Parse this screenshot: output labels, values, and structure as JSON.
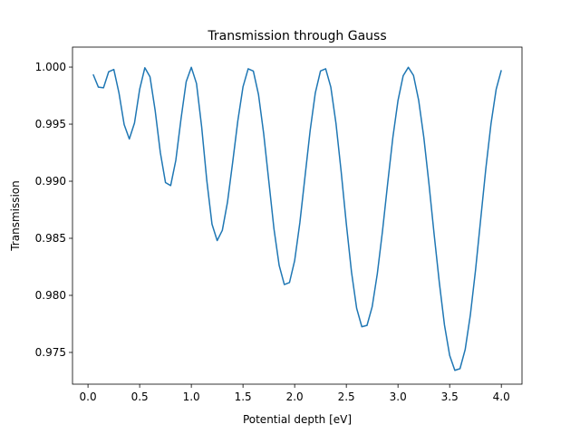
{
  "chart_data": {
    "type": "line",
    "title": "Transmission through Gauss",
    "x_label": "Potential depth [eV]",
    "y_label": "Transmission",
    "x": [
      0.05,
      0.1,
      0.15,
      0.2,
      0.25,
      0.3,
      0.35,
      0.4,
      0.45,
      0.5,
      0.55,
      0.6,
      0.65,
      0.7,
      0.75,
      0.8,
      0.85,
      0.9,
      0.95,
      1.0,
      1.05,
      1.1,
      1.15,
      1.2,
      1.25,
      1.3,
      1.35,
      1.4,
      1.45,
      1.5,
      1.55,
      1.6,
      1.65,
      1.7,
      1.75,
      1.8,
      1.85,
      1.9,
      1.95,
      2.0,
      2.05,
      2.1,
      2.15,
      2.2,
      2.25,
      2.3,
      2.35,
      2.4,
      2.45,
      2.5,
      2.55,
      2.6,
      2.65,
      2.7,
      2.75,
      2.8,
      2.85,
      2.9,
      2.95,
      3.0,
      3.05,
      3.1,
      3.15,
      3.2,
      3.25,
      3.3,
      3.35,
      3.4,
      3.45,
      3.5,
      3.55,
      3.6,
      3.65,
      3.7,
      3.75,
      3.8,
      3.85,
      3.9,
      3.95,
      4.0
    ],
    "series": [
      {
        "name": "Transmission",
        "color": "#1f77b4",
        "values": [
          0.99936,
          0.99825,
          0.99819,
          0.99959,
          0.99979,
          0.99772,
          0.99496,
          0.9937,
          0.9951,
          0.99805,
          0.99994,
          0.99915,
          0.99619,
          0.99251,
          0.98988,
          0.98962,
          0.99184,
          0.99545,
          0.99871,
          0.99998,
          0.99856,
          0.99476,
          0.99004,
          0.98624,
          0.9848,
          0.9857,
          0.98817,
          0.99166,
          0.9953,
          0.99827,
          0.99985,
          0.99965,
          0.9976,
          0.99418,
          0.99,
          0.98581,
          0.98262,
          0.98095,
          0.98113,
          0.98305,
          0.98635,
          0.9904,
          0.99445,
          0.99775,
          0.99966,
          0.99985,
          0.99824,
          0.99505,
          0.99084,
          0.98626,
          0.98205,
          0.97886,
          0.97725,
          0.97737,
          0.979,
          0.98191,
          0.98564,
          0.98981,
          0.99382,
          0.99707,
          0.99924,
          0.99998,
          0.99927,
          0.99709,
          0.99383,
          0.98975,
          0.98532,
          0.98112,
          0.97739,
          0.97474,
          0.97343,
          0.97358,
          0.97525,
          0.97827,
          0.98219,
          0.98665,
          0.99111,
          0.99503,
          0.99805,
          0.99973
        ]
      }
    ],
    "xlim": [
      -0.15,
      4.2
    ],
    "xticks": [
      {
        "value": 0,
        "label": "0.0"
      },
      0.5,
      {
        "value": 1,
        "label": "1.0"
      },
      1.5,
      {
        "value": 2,
        "label": "2.0"
      },
      2.5,
      {
        "value": 3,
        "label": "3.0"
      },
      3.5,
      {
        "value": 4,
        "label": "4.0"
      }
    ],
    "ylim": [
      0.97222,
      1.00175
    ],
    "yticks": [
      0.975,
      {
        "value": 0.98,
        "label": "0.980"
      },
      0.985,
      {
        "value": 0.99,
        "label": "0.990"
      },
      0.995,
      {
        "value": 1,
        "label": "1.000"
      }
    ],
    "grid": false
  }
}
